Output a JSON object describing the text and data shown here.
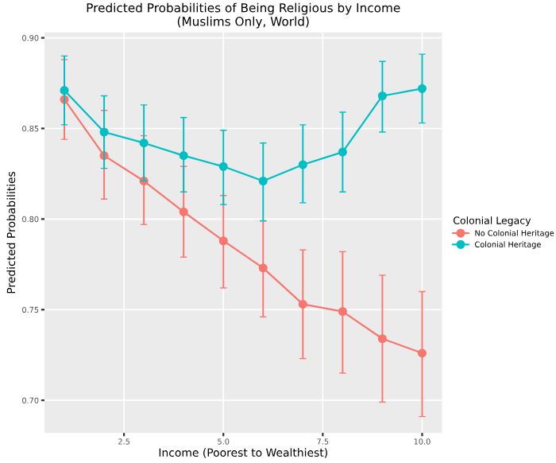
{
  "chart_data": {
    "type": "line",
    "title": "Predicted Probabilities of Being Religious by Income\n(Muslims Only, World)",
    "xlabel": "Income (Poorest to Wealthiest)",
    "ylabel": "Predicted Probabilities",
    "legend_title": "Colonial Legacy",
    "x": [
      1,
      2,
      3,
      4,
      5,
      6,
      7,
      8,
      9,
      10
    ],
    "series": [
      {
        "name": "No Colonial Heritage",
        "color": "#f8766d",
        "values": [
          0.866,
          0.835,
          0.821,
          0.804,
          0.788,
          0.773,
          0.753,
          0.749,
          0.734,
          0.726
        ],
        "errors": [
          [
            0.844,
            0.888
          ],
          [
            0.811,
            0.86
          ],
          [
            0.797,
            0.846
          ],
          [
            0.779,
            0.829
          ],
          [
            0.762,
            0.813
          ],
          [
            0.746,
            0.799
          ],
          [
            0.723,
            0.783
          ],
          [
            0.715,
            0.782
          ],
          [
            0.699,
            0.769
          ],
          [
            0.691,
            0.76
          ]
        ]
      },
      {
        "name": "Colonial Heritage",
        "color": "#00bfc4",
        "values": [
          0.871,
          0.848,
          0.842,
          0.835,
          0.829,
          0.821,
          0.83,
          0.837,
          0.868,
          0.872
        ],
        "errors": [
          [
            0.852,
            0.89
          ],
          [
            0.828,
            0.868
          ],
          [
            0.821,
            0.863
          ],
          [
            0.815,
            0.856
          ],
          [
            0.808,
            0.849
          ],
          [
            0.799,
            0.842
          ],
          [
            0.809,
            0.852
          ],
          [
            0.815,
            0.859
          ],
          [
            0.848,
            0.887
          ],
          [
            0.853,
            0.891
          ]
        ]
      }
    ],
    "xlim": [
      0.5,
      10.5
    ],
    "ylim": [
      0.682,
      0.903
    ],
    "xticks": [
      {
        "value": 2.5,
        "label": "2.5"
      },
      {
        "value": 5,
        "label": "5.0"
      },
      {
        "value": 7.5,
        "label": "7.5"
      },
      {
        "value": 10,
        "label": "10.0"
      }
    ],
    "yticks": [
      {
        "value": 0.7,
        "label": "0.70"
      },
      {
        "value": 0.75,
        "label": "0.75"
      },
      {
        "value": 0.8,
        "label": "0.80"
      },
      {
        "value": 0.85,
        "label": "0.85"
      },
      {
        "value": 0.9,
        "label": "0.90"
      }
    ],
    "grid": true,
    "legend": "right",
    "marker": "circle",
    "line_style": "solid"
  }
}
